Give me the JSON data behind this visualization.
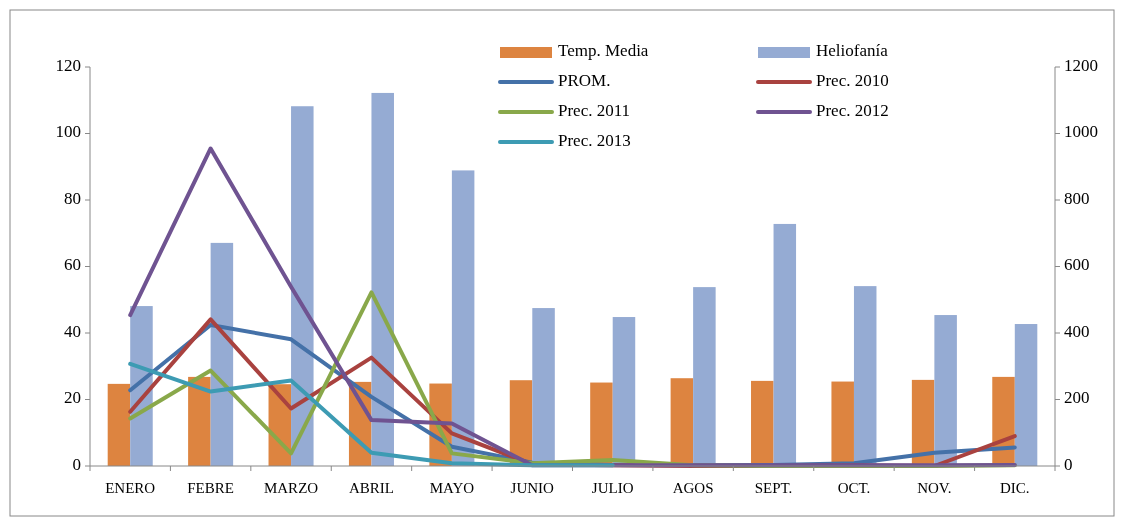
{
  "chart_data": {
    "type": "bar",
    "categories": [
      "ENERO",
      "FEBRE",
      "MARZO",
      "ABRIL",
      "MAYO",
      "JUNIO",
      "JULIO",
      "AGOS",
      "SEPT.",
      "OCT.",
      "NOV.",
      "DIC."
    ],
    "ylim": [
      0,
      120
    ],
    "yticks": [
      0,
      20,
      40,
      60,
      80,
      100,
      120
    ],
    "y2lim": [
      0,
      1200
    ],
    "y2ticks": [
      0,
      200,
      400,
      600,
      800,
      1000,
      1200
    ],
    "grid": false,
    "legend": "top",
    "marker": "none",
    "series": [
      {
        "name": "Temp. Media",
        "color": "#dd8440",
        "values": [
          24.7,
          26.8,
          24.6,
          25.3,
          24.8,
          25.8,
          25.1,
          26.4,
          25.6,
          25.4,
          25.9,
          26.8
        ]
      },
      {
        "name": "Heliofanía",
        "color": "#95abd3",
        "values": [
          48.1,
          67.1,
          108.2,
          112.2,
          88.9,
          47.5,
          44.8,
          53.8,
          72.8,
          54.1,
          45.4,
          42.7
        ]
      },
      {
        "name": "PROM.",
        "type": "line",
        "axis": "y2",
        "color": "#4471a8",
        "values": [
          228,
          424,
          381,
          208,
          58,
          10,
          3,
          2,
          3,
          8,
          40,
          56
        ]
      },
      {
        "name": "Prec. 2010",
        "type": "line",
        "axis": "y2",
        "color": "#a9423f",
        "values": [
          163,
          441,
          173,
          326,
          98,
          5,
          2,
          0,
          0,
          2,
          0,
          90
        ]
      },
      {
        "name": "Prec. 2011",
        "type": "line",
        "axis": "y2",
        "color": "#89a84a",
        "values": [
          143,
          287,
          38,
          522,
          38,
          8,
          18,
          2,
          0,
          0,
          0,
          2
        ]
      },
      {
        "name": "Prec. 2012",
        "type": "line",
        "axis": "y2",
        "color": "#6f5391",
        "values": [
          454,
          955,
          539,
          138,
          128,
          2,
          2,
          2,
          2,
          2,
          2,
          3
        ]
      },
      {
        "name": "Prec. 2013",
        "type": "line",
        "axis": "y2",
        "color": "#3d9bb3",
        "values": [
          307,
          224,
          257,
          40,
          8,
          2,
          2,
          null,
          null,
          null,
          null,
          null
        ]
      }
    ]
  }
}
